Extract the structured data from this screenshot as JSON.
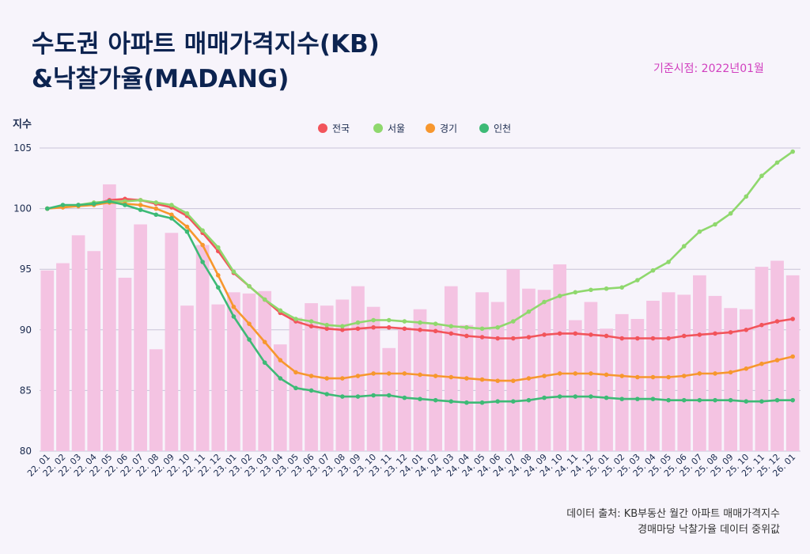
{
  "title_line1": "수도권 아파트 매매가격지수(KB)",
  "title_line2": "&낙찰가율(MADANG)",
  "base_point": "기준시점: 2022년01월",
  "y_axis_label": "지수",
  "source_line1": "데이터 출처: KB부동산 월간 아파트 매매가격지수",
  "source_line2": "경매마당 낙찰가율 데이터 중위값",
  "chart_data": {
    "type": "line",
    "ylim": [
      80,
      105
    ],
    "yticks": [
      80,
      85,
      90,
      95,
      100,
      105
    ],
    "grid": true,
    "legend_position": "top-center",
    "categories": [
      "22. 01",
      "22. 02",
      "22. 03",
      "22. 04",
      "22. 05",
      "22. 06",
      "22. 07",
      "22. 08",
      "22. 09",
      "22. 10",
      "22. 11",
      "22. 12",
      "23. 01",
      "23. 02",
      "23. 03",
      "23. 04",
      "23. 05",
      "23. 06",
      "23. 07",
      "23. 08",
      "23. 09",
      "23. 10",
      "23. 11",
      "23. 12",
      "24. 01",
      "24. 02",
      "24. 03",
      "24. 04",
      "24. 05",
      "24. 06",
      "24. 07",
      "24. 08",
      "24. 09",
      "24. 10",
      "24. 11",
      "24. 12",
      "25. 01",
      "25. 02",
      "25. 03",
      "25. 04",
      "25. 05",
      "25. 06",
      "25. 07",
      "25. 08",
      "25. 09",
      "25. 10",
      "25. 11",
      "25. 12",
      "26. 01"
    ],
    "bars": {
      "color": "#f4c3e2",
      "values": [
        94.9,
        95.5,
        97.8,
        96.5,
        102.0,
        94.3,
        98.7,
        88.4,
        98.0,
        92.0,
        97.0,
        92.1,
        93.1,
        93.0,
        93.2,
        88.8,
        91.0,
        92.2,
        92.0,
        92.5,
        93.6,
        91.9,
        88.5,
        90.2,
        91.7,
        90.5,
        93.6,
        90.4,
        93.1,
        92.3,
        95.0,
        93.4,
        93.3,
        95.4,
        90.8,
        92.3,
        90.1,
        91.3,
        90.9,
        92.4,
        93.1,
        92.9,
        94.5,
        92.8,
        91.8,
        91.7,
        95.2,
        95.7,
        94.5
      ]
    },
    "series": [
      {
        "name": "전국",
        "color": "#f2545b",
        "values": [
          100.0,
          100.2,
          100.3,
          100.4,
          100.7,
          100.8,
          100.7,
          100.4,
          100.1,
          99.4,
          98.0,
          96.5,
          94.7,
          93.6,
          92.5,
          91.4,
          90.7,
          90.3,
          90.1,
          90.0,
          90.1,
          90.2,
          90.2,
          90.1,
          90.0,
          89.9,
          89.7,
          89.5,
          89.4,
          89.3,
          89.3,
          89.4,
          89.6,
          89.7,
          89.7,
          89.6,
          89.5,
          89.3,
          89.3,
          89.3,
          89.3,
          89.5,
          89.6,
          89.7,
          89.8,
          90.0,
          90.4,
          90.7,
          90.9
        ]
      },
      {
        "name": "서울",
        "color": "#8fd86d",
        "values": [
          100.0,
          100.2,
          100.3,
          100.5,
          100.6,
          100.6,
          100.7,
          100.5,
          100.3,
          99.6,
          98.2,
          96.8,
          94.8,
          93.6,
          92.5,
          91.6,
          90.9,
          90.7,
          90.4,
          90.3,
          90.6,
          90.8,
          90.8,
          90.7,
          90.6,
          90.5,
          90.3,
          90.2,
          90.1,
          90.2,
          90.7,
          91.5,
          92.3,
          92.8,
          93.1,
          93.3,
          93.4,
          93.5,
          94.1,
          94.9,
          95.6,
          96.9,
          98.1,
          98.7,
          99.6,
          101.0,
          102.7,
          103.8,
          104.7
        ]
      },
      {
        "name": "경기",
        "color": "#f7972e",
        "values": [
          100.0,
          100.1,
          100.2,
          100.3,
          100.5,
          100.4,
          100.3,
          100.0,
          99.5,
          98.5,
          97.0,
          94.5,
          91.9,
          90.5,
          89.0,
          87.5,
          86.5,
          86.2,
          86.0,
          86.0,
          86.2,
          86.4,
          86.4,
          86.4,
          86.3,
          86.2,
          86.1,
          86.0,
          85.9,
          85.8,
          85.8,
          86.0,
          86.2,
          86.4,
          86.4,
          86.4,
          86.3,
          86.2,
          86.1,
          86.1,
          86.1,
          86.2,
          86.4,
          86.4,
          86.5,
          86.8,
          87.2,
          87.5,
          87.8
        ]
      },
      {
        "name": "인천",
        "color": "#3dba76",
        "values": [
          100.0,
          100.3,
          100.3,
          100.4,
          100.6,
          100.3,
          99.9,
          99.5,
          99.2,
          98.1,
          95.6,
          93.5,
          91.1,
          89.2,
          87.3,
          86.0,
          85.2,
          85.0,
          84.7,
          84.5,
          84.5,
          84.6,
          84.6,
          84.4,
          84.3,
          84.2,
          84.1,
          84.0,
          84.0,
          84.1,
          84.1,
          84.2,
          84.4,
          84.5,
          84.5,
          84.5,
          84.4,
          84.3,
          84.3,
          84.3,
          84.2,
          84.2,
          84.2,
          84.2,
          84.2,
          84.1,
          84.1,
          84.2,
          84.2
        ]
      }
    ]
  }
}
